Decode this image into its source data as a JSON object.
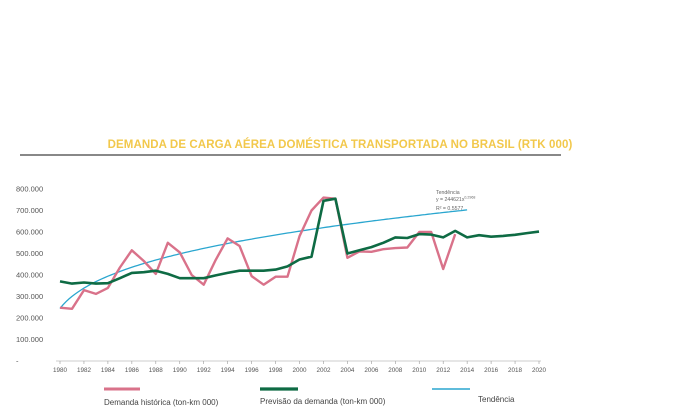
{
  "colors": {
    "title": "#f2c84b",
    "rule": "#888888",
    "historical": "#d9728a",
    "forecast": "#0e6b44",
    "trend": "#2aa6cf",
    "axis": "#999999"
  },
  "chart_data": {
    "type": "line",
    "title": "DEMANDA DE CARGA AÉREA DOMÉSTICA TRANSPORTADA NO BRASIL (RTK 000)",
    "xlabel": "",
    "ylabel": "",
    "xlim": [
      1980,
      2020
    ],
    "ylim": [
      0,
      800000
    ],
    "grid": false,
    "legend_position": "bottom",
    "y_ticks": [
      "800.000",
      "700.000",
      "600.000",
      "500.000",
      "400.000",
      "300.000",
      "200.000",
      "100.000",
      "-"
    ],
    "y_tick_values": [
      800000,
      700000,
      600000,
      500000,
      400000,
      300000,
      200000,
      100000,
      0
    ],
    "x_ticks": [
      "1980",
      "1982",
      "1984",
      "1986",
      "1988",
      "1990",
      "1992",
      "1994",
      "1996",
      "1998",
      "2000",
      "2002",
      "2004",
      "2006",
      "2008",
      "2010",
      "2012",
      "2014",
      "2016",
      "2018",
      "2020"
    ],
    "annotation": {
      "title": "Tendência",
      "equation": "y = 244621x",
      "exponent": "0,2968",
      "r2": "R² = 0,5577"
    },
    "series": [
      {
        "name": "Demanda histórica (ton-km 000)",
        "key": "historical",
        "x": [
          1980,
          1981,
          1982,
          1983,
          1984,
          1985,
          1986,
          1987,
          1988,
          1989,
          1990,
          1991,
          1992,
          1993,
          1994,
          1995,
          1996,
          1997,
          1998,
          1999,
          2000,
          2001,
          2002,
          2003,
          2004,
          2005,
          2006,
          2007,
          2008,
          2009,
          2010,
          2011,
          2012,
          2013
        ],
        "y": [
          248000,
          243000,
          330000,
          312000,
          340000,
          435000,
          515000,
          465000,
          405000,
          550000,
          505000,
          400000,
          355000,
          470000,
          570000,
          535000,
          395000,
          355000,
          392000,
          392000,
          580000,
          700000,
          760000,
          755000,
          480000,
          510000,
          508000,
          520000,
          525000,
          528000,
          600000,
          600000,
          428000,
          590000
        ]
      },
      {
        "name": "Previsão da demanda (ton-km 000)",
        "key": "forecast",
        "x": [
          1980,
          1981,
          1982,
          1983,
          1984,
          1985,
          1986,
          1987,
          1988,
          1989,
          1990,
          1991,
          1992,
          1993,
          1994,
          1995,
          1996,
          1997,
          1998,
          1999,
          2000,
          2001,
          2002,
          2003,
          2004,
          2005,
          2006,
          2007,
          2008,
          2009,
          2010,
          2011,
          2012,
          2013,
          2014,
          2015,
          2016,
          2017,
          2018,
          2019,
          2020
        ],
        "y": [
          370000,
          360000,
          365000,
          360000,
          362000,
          385000,
          410000,
          413000,
          420000,
          405000,
          385000,
          385000,
          385000,
          398000,
          410000,
          420000,
          420000,
          420000,
          425000,
          440000,
          472000,
          485000,
          745000,
          755000,
          500000,
          515000,
          530000,
          550000,
          575000,
          572000,
          590000,
          588000,
          575000,
          605000,
          575000,
          585000,
          578000,
          582000,
          587000,
          595000,
          602000
        ]
      },
      {
        "name": "Tendência",
        "key": "trend",
        "coefficient": 244621,
        "exponent": 0.2968,
        "x_start": 1980,
        "x_end": 2014
      }
    ]
  }
}
